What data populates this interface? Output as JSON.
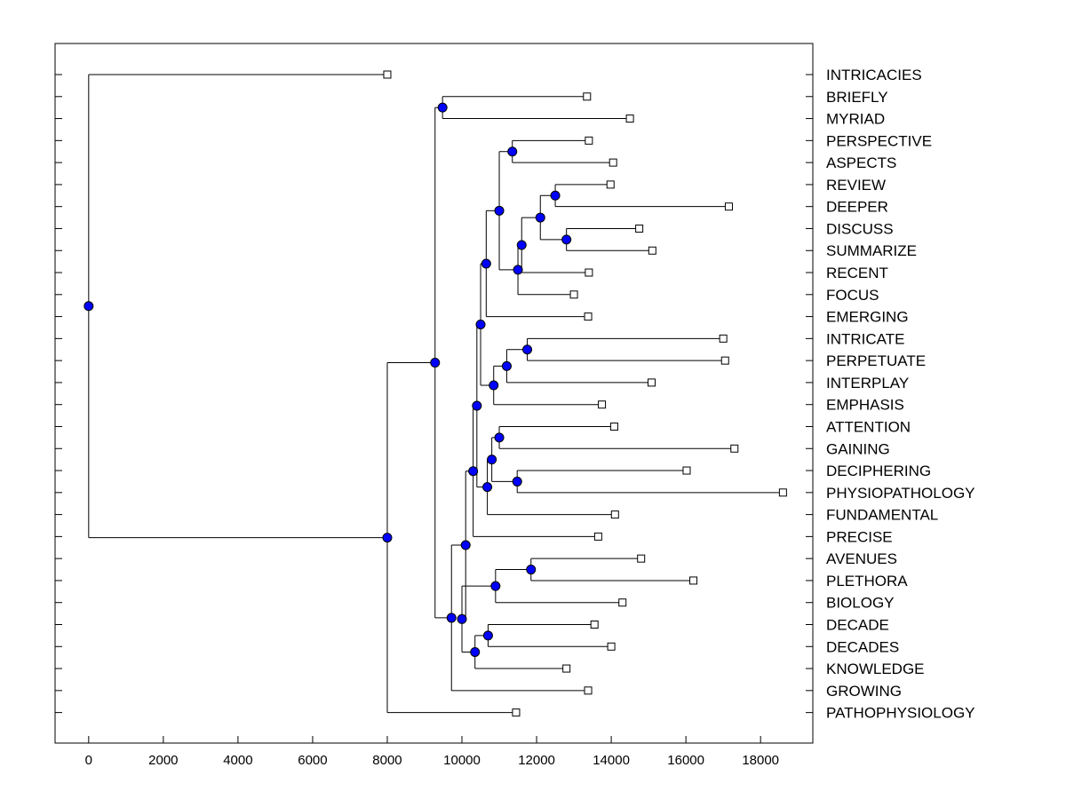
{
  "chart_data": {
    "type": "dendrogram",
    "orientation": "horizontal",
    "xlim": [
      -900,
      19400
    ],
    "xticks": [
      0,
      2000,
      4000,
      6000,
      8000,
      10000,
      12000,
      14000,
      16000,
      18000
    ],
    "leaves": [
      {
        "label": "INTRICACIES",
        "x": 8000
      },
      {
        "label": "BRIEFLY",
        "x": 13350
      },
      {
        "label": "MYRIAD",
        "x": 14500
      },
      {
        "label": "PERSPECTIVE",
        "x": 13400
      },
      {
        "label": "ASPECTS",
        "x": 14050
      },
      {
        "label": "REVIEW",
        "x": 13980
      },
      {
        "label": "DEEPER",
        "x": 17150
      },
      {
        "label": "DISCUSS",
        "x": 14750
      },
      {
        "label": "SUMMARIZE",
        "x": 15100
      },
      {
        "label": "RECENT",
        "x": 13400
      },
      {
        "label": "FOCUS",
        "x": 13000
      },
      {
        "label": "EMERGING",
        "x": 13380
      },
      {
        "label": "INTRICATE",
        "x": 17000
      },
      {
        "label": "PERPETUATE",
        "x": 17050
      },
      {
        "label": "INTERPLAY",
        "x": 15080
      },
      {
        "label": "EMPHASIS",
        "x": 13750
      },
      {
        "label": "ATTENTION",
        "x": 14080
      },
      {
        "label": "GAINING",
        "x": 17300
      },
      {
        "label": "DECIPHERING",
        "x": 16020
      },
      {
        "label": "PHYSIOPATHOLOGY",
        "x": 18600
      },
      {
        "label": "FUNDAMENTAL",
        "x": 14100
      },
      {
        "label": "PRECISE",
        "x": 13650
      },
      {
        "label": "AVENUES",
        "x": 14800
      },
      {
        "label": "PLETHORA",
        "x": 16200
      },
      {
        "label": "BIOLOGY",
        "x": 14300
      },
      {
        "label": "DECADE",
        "x": 13550
      },
      {
        "label": "DECADES",
        "x": 14000
      },
      {
        "label": "KNOWLEDGE",
        "x": 12800
      },
      {
        "label": "GROWING",
        "x": 13380
      },
      {
        "label": "PATHOPHYSIOLOGY",
        "x": 11450
      }
    ],
    "merges": [
      {
        "id": "n1",
        "x": 9480,
        "children": [
          "L1",
          "L2"
        ]
      },
      {
        "id": "n2",
        "x": 11350,
        "children": [
          "L3",
          "L4"
        ]
      },
      {
        "id": "n3",
        "x": 12500,
        "children": [
          "L5",
          "L6"
        ]
      },
      {
        "id": "n4",
        "x": 12800,
        "children": [
          "L7",
          "L8"
        ]
      },
      {
        "id": "n5",
        "x": 12100,
        "children": [
          "n3",
          "n4"
        ]
      },
      {
        "id": "n6",
        "x": 11600,
        "children": [
          "n5",
          "L9"
        ]
      },
      {
        "id": "n7",
        "x": 11500,
        "children": [
          "n6",
          "L10"
        ]
      },
      {
        "id": "n8",
        "x": 11000,
        "children": [
          "n2",
          "n7"
        ]
      },
      {
        "id": "n9",
        "x": 10650,
        "children": [
          "n8",
          "L11"
        ]
      },
      {
        "id": "n10",
        "x": 11750,
        "children": [
          "L12",
          "L13"
        ]
      },
      {
        "id": "n11",
        "x": 11200,
        "children": [
          "n10",
          "L14"
        ]
      },
      {
        "id": "n12",
        "x": 10850,
        "children": [
          "n11",
          "L15"
        ]
      },
      {
        "id": "n13",
        "x": 10500,
        "children": [
          "n9",
          "n12"
        ]
      },
      {
        "id": "n14",
        "x": 11000,
        "children": [
          "L16",
          "L17"
        ]
      },
      {
        "id": "n15",
        "x": 11480,
        "children": [
          "L18",
          "L19"
        ]
      },
      {
        "id": "n16",
        "x": 10800,
        "children": [
          "n14",
          "n15"
        ]
      },
      {
        "id": "n17",
        "x": 10680,
        "children": [
          "n16",
          "L20"
        ]
      },
      {
        "id": "n18",
        "x": 10400,
        "children": [
          "n13",
          "n17"
        ]
      },
      {
        "id": "n19",
        "x": 10300,
        "children": [
          "n18",
          "L21"
        ]
      },
      {
        "id": "n20",
        "x": 11850,
        "children": [
          "L22",
          "L23"
        ]
      },
      {
        "id": "n21",
        "x": 10900,
        "children": [
          "n20",
          "L24"
        ]
      },
      {
        "id": "n22",
        "x": 10700,
        "children": [
          "L25",
          "L26"
        ]
      },
      {
        "id": "n23",
        "x": 10350,
        "children": [
          "n22",
          "L27"
        ]
      },
      {
        "id": "n24",
        "x": 10000,
        "children": [
          "n21",
          "n23"
        ]
      },
      {
        "id": "n25",
        "x": 10100,
        "children": [
          "n19",
          "n24"
        ]
      },
      {
        "id": "n26",
        "x": 9720,
        "children": [
          "n25",
          "L28"
        ]
      },
      {
        "id": "n27",
        "x": 9280,
        "children": [
          "n1",
          "n26"
        ]
      },
      {
        "id": "n28",
        "x": 8000,
        "children": [
          "n27",
          "L29"
        ]
      },
      {
        "id": "n29",
        "x": 0,
        "children": [
          "L0",
          "n28"
        ]
      }
    ],
    "colors": {
      "node": "#0000ff",
      "leaf": "#ffffff",
      "line": "#000000"
    }
  }
}
